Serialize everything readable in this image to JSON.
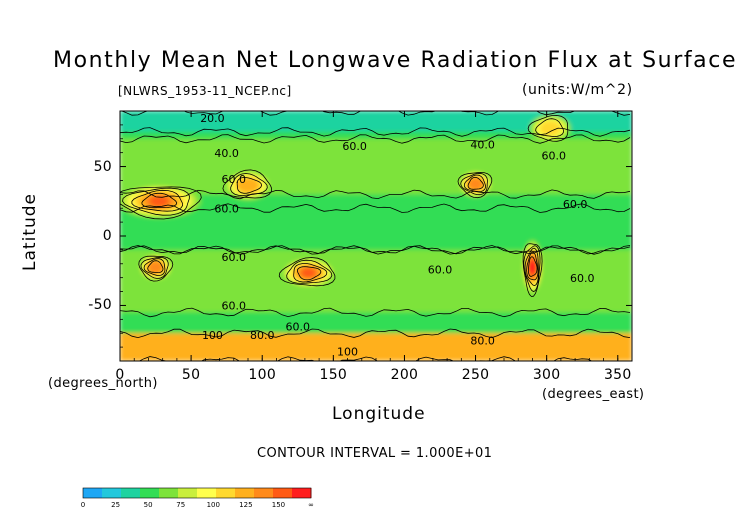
{
  "chart_data": {
    "type": "heatmap",
    "title": "Monthly Mean Net Longwave Radiation Flux at Surface",
    "source_label": "[NLWRS_1953-11_NCEP.nc]",
    "units_label": "(units:W/m^2)",
    "xlabel": "Longitude",
    "ylabel": "Latitude",
    "x_units_label": "(degrees_east)",
    "y_units_label": "(degrees_north)",
    "xlim": [
      0,
      360
    ],
    "ylim": [
      -90,
      90
    ],
    "x_ticks": [
      {
        "value": 0,
        "label": "0"
      },
      {
        "value": 50,
        "label": "50"
      },
      {
        "value": 100,
        "label": "100"
      },
      {
        "value": 150,
        "label": "150"
      },
      {
        "value": 200,
        "label": "200"
      },
      {
        "value": 250,
        "label": "250"
      },
      {
        "value": 300,
        "label": "300"
      },
      {
        "value": 350,
        "label": "350"
      }
    ],
    "y_ticks": [
      {
        "value": 50,
        "label": "50"
      },
      {
        "value": 0,
        "label": "0"
      },
      {
        "value": -50,
        "label": "-50"
      }
    ],
    "contour_interval_label": "CONTOUR INTERVAL = 1.000E+01",
    "contour_labels": [
      {
        "text": "20.0",
        "lon": 65,
        "lat": 82
      },
      {
        "text": "40.0",
        "lon": 75,
        "lat": 57
      },
      {
        "text": "60.0",
        "lon": 80,
        "lat": 38
      },
      {
        "text": "60.0",
        "lon": 75,
        "lat": 17
      },
      {
        "text": "60.0",
        "lon": 165,
        "lat": 62
      },
      {
        "text": "40.0",
        "lon": 255,
        "lat": 63
      },
      {
        "text": "60.0",
        "lon": 305,
        "lat": 55
      },
      {
        "text": "60.0",
        "lon": 320,
        "lat": 20
      },
      {
        "text": "60.0",
        "lon": 80,
        "lat": -18
      },
      {
        "text": "60.0",
        "lon": 225,
        "lat": -27
      },
      {
        "text": "60.0",
        "lon": 325,
        "lat": -33
      },
      {
        "text": "60.0",
        "lon": 80,
        "lat": -53
      },
      {
        "text": "60.0",
        "lon": 125,
        "lat": -68
      },
      {
        "text": "100",
        "lon": 65,
        "lat": -74
      },
      {
        "text": "80.0",
        "lon": 100,
        "lat": -74
      },
      {
        "text": "80.0",
        "lon": 255,
        "lat": -78
      },
      {
        "text": "100",
        "lon": 160,
        "lat": -86
      }
    ],
    "colorbar": {
      "levels": [
        0,
        25,
        50,
        75,
        100,
        125,
        150,
        "∞"
      ],
      "tick_labels": [
        "0",
        "25",
        "50",
        "75",
        "100",
        "125",
        "150",
        "∞"
      ],
      "colors": [
        "#1ea7f5",
        "#22c8dc",
        "#1fd3a0",
        "#33dd55",
        "#7de33a",
        "#c9ef3c",
        "#ffff4d",
        "#ffd92f",
        "#ffb01e",
        "#ff8a1a",
        "#ff5a14",
        "#ff1e1e"
      ]
    },
    "field_features": [
      {
        "region": "arctic band",
        "lon": [
          0,
          360
        ],
        "lat": [
          75,
          90
        ],
        "value": 25
      },
      {
        "region": "northern midlatitudes",
        "lon": [
          0,
          360
        ],
        "lat": [
          30,
          70
        ],
        "value": 55
      },
      {
        "region": "tropical band",
        "lon": [
          0,
          360
        ],
        "lat": [
          -10,
          20
        ],
        "value": 40
      },
      {
        "region": "southern subtropics",
        "lon": [
          0,
          360
        ],
        "lat": [
          -55,
          -10
        ],
        "value": 55
      },
      {
        "region": "antarctic coast band",
        "lon": [
          0,
          360
        ],
        "lat": [
          -90,
          -70
        ],
        "value": 110
      },
      {
        "region": "Sahara/Arabia maximum",
        "lon": [
          0,
          55
        ],
        "lat": [
          15,
          35
        ],
        "value": 125
      },
      {
        "region": "Tibet/central Asia",
        "lon": [
          75,
          105
        ],
        "lat": [
          28,
          45
        ],
        "value": 110
      },
      {
        "region": "southern Africa",
        "lon": [
          15,
          35
        ],
        "lat": [
          -30,
          -15
        ],
        "value": 120
      },
      {
        "region": "Australia",
        "lon": [
          115,
          150
        ],
        "lat": [
          -35,
          -18
        ],
        "value": 130
      },
      {
        "region": "western North America",
        "lon": [
          240,
          260
        ],
        "lat": [
          30,
          45
        ],
        "value": 120
      },
      {
        "region": "Andes/Atacama",
        "lon": [
          285,
          295
        ],
        "lat": [
          -40,
          -5
        ],
        "value": 140
      },
      {
        "region": "Greenland/north Atlantic",
        "lon": [
          290,
          315
        ],
        "lat": [
          70,
          85
        ],
        "value": 95
      }
    ]
  }
}
